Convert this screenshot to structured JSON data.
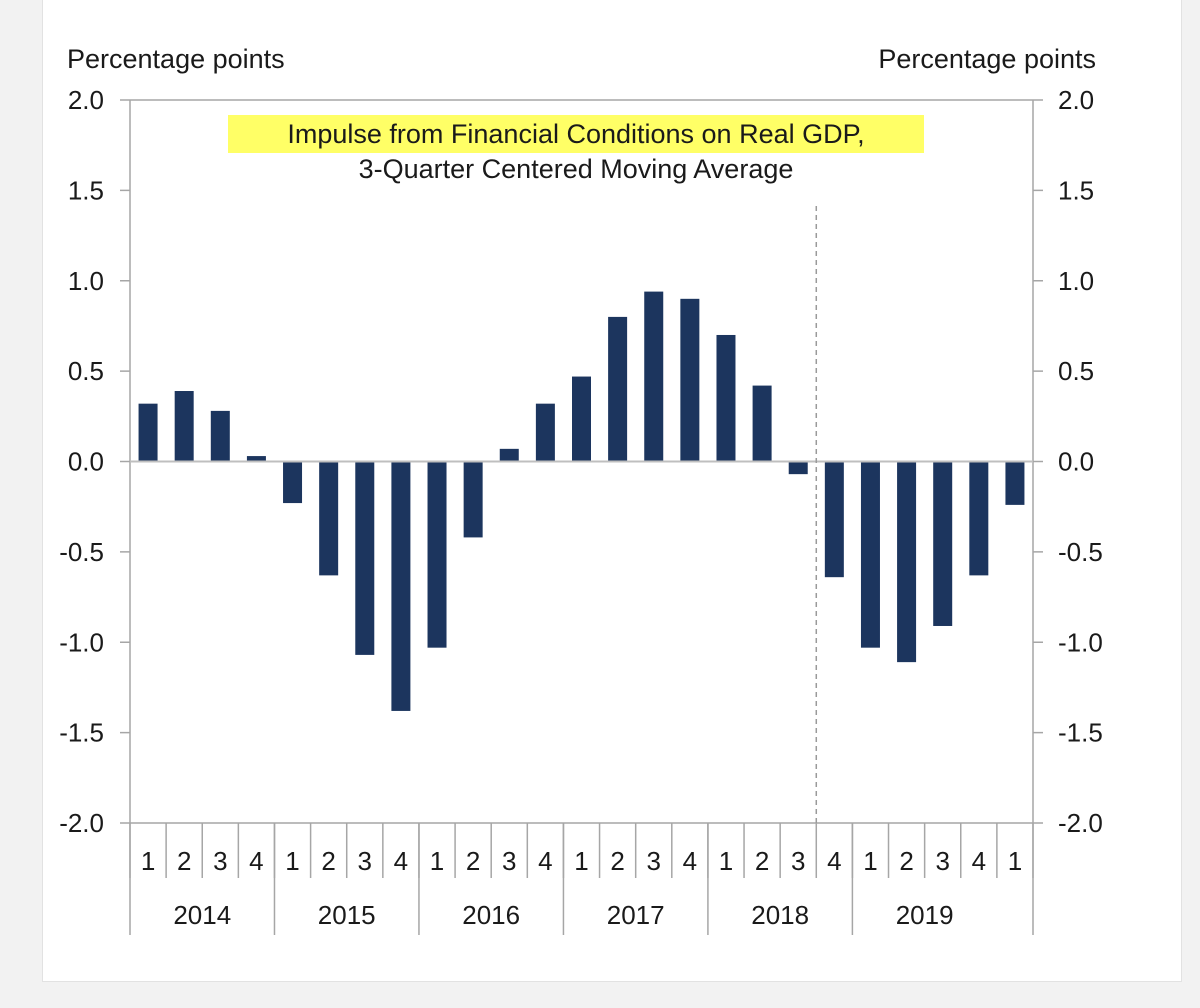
{
  "chart_data": {
    "type": "bar",
    "title": "Impulse from Financial Conditions on Real GDP,",
    "subtitle": "3-Quarter Centered Moving Average",
    "ylabel_left": "Percentage points",
    "ylabel_right": "Percentage points",
    "ylim": [
      -2.0,
      2.0
    ],
    "yticks": [
      "2.0",
      "1.5",
      "1.0",
      "0.5",
      "0.0",
      "-0.5",
      "-1.0",
      "-1.5",
      "-2.0"
    ],
    "categories": [
      "1",
      "2",
      "3",
      "4",
      "1",
      "2",
      "3",
      "4",
      "1",
      "2",
      "3",
      "4",
      "1",
      "2",
      "3",
      "4",
      "1",
      "2",
      "3",
      "4",
      "1",
      "2",
      "3",
      "4",
      "1"
    ],
    "years": [
      {
        "label": "2014",
        "quarters": 4
      },
      {
        "label": "2015",
        "quarters": 4
      },
      {
        "label": "2016",
        "quarters": 4
      },
      {
        "label": "2017",
        "quarters": 4
      },
      {
        "label": "2018",
        "quarters": 4
      },
      {
        "label": "2019",
        "quarters": 5
      }
    ],
    "values": [
      0.32,
      0.39,
      0.28,
      0.03,
      -0.23,
      -0.63,
      -1.07,
      -1.38,
      -1.03,
      -0.42,
      0.07,
      0.32,
      0.47,
      0.8,
      0.94,
      0.9,
      0.7,
      0.42,
      -0.07,
      -0.64,
      -1.03,
      -1.11,
      -0.91,
      -0.63,
      -0.24
    ],
    "forecast_divider_after_index": 18,
    "bar_color": "#1c355e",
    "title_highlight_color": "#ffff66",
    "grid": false
  }
}
